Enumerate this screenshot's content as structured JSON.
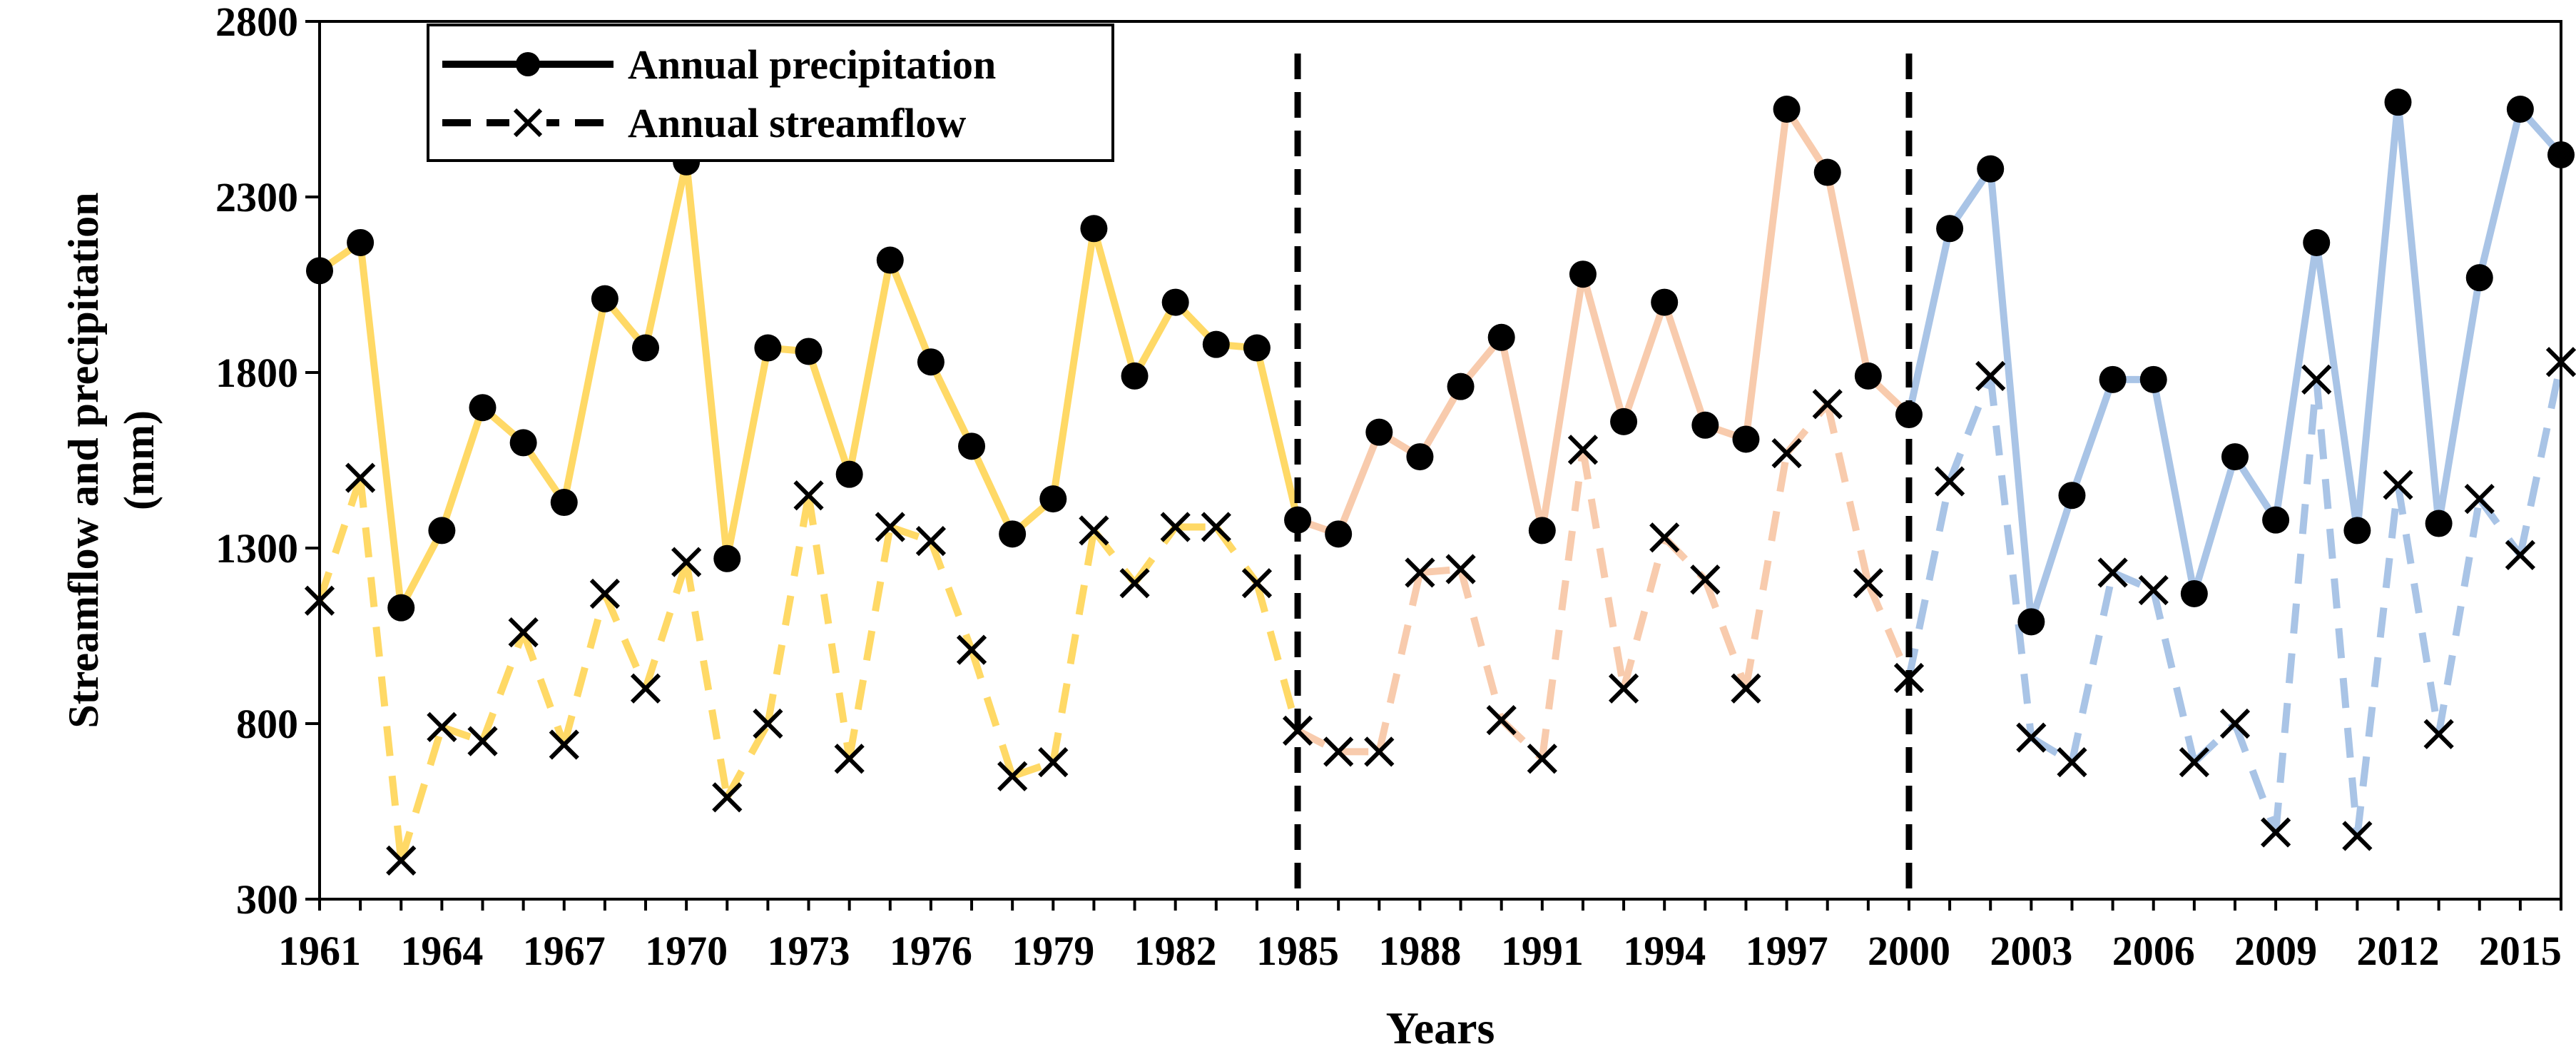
{
  "chart_data": {
    "type": "line",
    "xlabel": "Years",
    "ylabel": "Streamflow and precipitation (mm)",
    "ylim": [
      300,
      2800
    ],
    "yticks": [
      300,
      800,
      1300,
      1800,
      2300,
      2800
    ],
    "xlim": [
      1961,
      2016
    ],
    "xticks": [
      "1961",
      "1964",
      "1967",
      "1970",
      "1973",
      "1976",
      "1979",
      "1982",
      "1985",
      "1988",
      "1991",
      "1994",
      "1997",
      "2000",
      "2003",
      "2006",
      "2009",
      "2012",
      "2015"
    ],
    "grid": false,
    "legend_position": "top-left",
    "period_breaks": [
      1985,
      2000
    ],
    "period_colors": [
      "#FFD966",
      "#F8CBAD",
      "#A9C4E6"
    ],
    "years": [
      1961,
      1962,
      1963,
      1964,
      1965,
      1966,
      1967,
      1968,
      1969,
      1970,
      1971,
      1972,
      1973,
      1974,
      1975,
      1976,
      1977,
      1978,
      1979,
      1980,
      1981,
      1982,
      1983,
      1984,
      1985,
      1986,
      1987,
      1988,
      1989,
      1990,
      1991,
      1992,
      1993,
      1994,
      1995,
      1996,
      1997,
      1998,
      1999,
      2000,
      2001,
      2002,
      2003,
      2004,
      2005,
      2006,
      2007,
      2008,
      2009,
      2010,
      2011,
      2012,
      2013,
      2014,
      2015,
      2016
    ],
    "series": [
      {
        "name": "Annual precipitation",
        "style": "solid",
        "marker": "circle",
        "values": [
          2090,
          2170,
          1130,
          1350,
          1700,
          1600,
          1430,
          2010,
          1870,
          2400,
          1270,
          1870,
          1860,
          1510,
          2120,
          1830,
          1590,
          1340,
          1440,
          2210,
          1790,
          2000,
          1880,
          1870,
          1380,
          1340,
          1630,
          1560,
          1760,
          1900,
          1350,
          2080,
          1660,
          2000,
          1650,
          1610,
          2550,
          2370,
          1790,
          1680,
          2210,
          2380,
          1090,
          1450,
          1780,
          1780,
          1170,
          1560,
          1380,
          2170,
          1350,
          2570,
          1370,
          2070,
          2550,
          2420
        ]
      },
      {
        "name": "Annual streamflow",
        "style": "dashed",
        "marker": "x",
        "values": [
          1150,
          1500,
          410,
          790,
          750,
          1060,
          740,
          1170,
          900,
          1260,
          590,
          800,
          1450,
          700,
          1360,
          1320,
          1010,
          650,
          690,
          1350,
          1200,
          1360,
          1360,
          1200,
          780,
          720,
          720,
          1230,
          1240,
          810,
          700,
          1580,
          900,
          1330,
          1210,
          900,
          1570,
          1710,
          1200,
          930,
          1490,
          1790,
          760,
          690,
          1230,
          1180,
          690,
          800,
          490,
          1780,
          480,
          1480,
          770,
          1440,
          1280,
          1830
        ]
      }
    ]
  }
}
